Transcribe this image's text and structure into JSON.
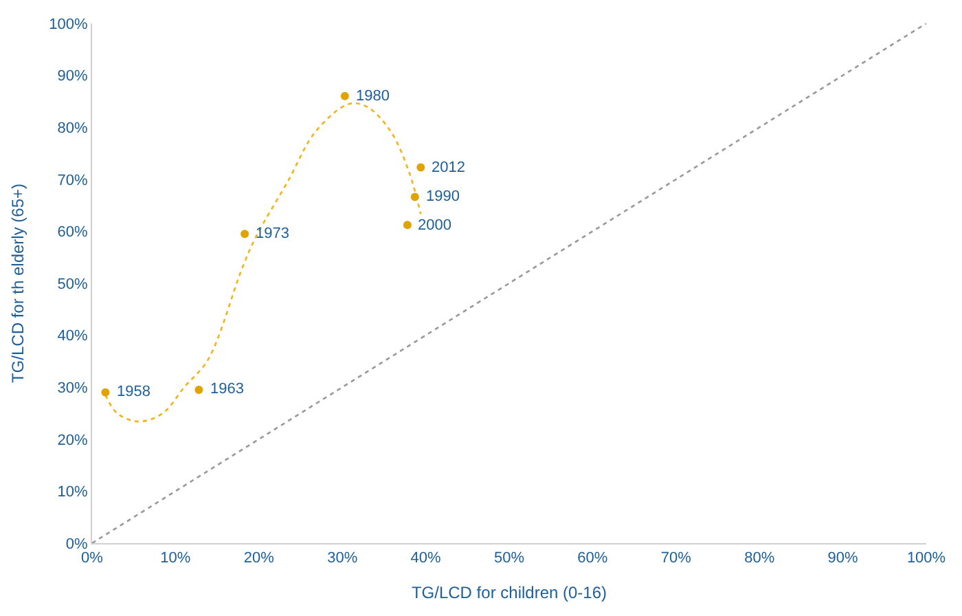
{
  "chart_data": {
    "type": "scatter",
    "xlabel": "TG/LCD for children (0-16)",
    "ylabel": "TG/LCD for th elderly (65+)",
    "xlim": [
      0,
      100
    ],
    "ylim": [
      0,
      100
    ],
    "xticks": [
      {
        "value": 0,
        "label": "0%"
      },
      {
        "value": 10,
        "label": "10%"
      },
      {
        "value": 20,
        "label": "20%"
      },
      {
        "value": 30,
        "label": "30%"
      },
      {
        "value": 40,
        "label": "40%"
      },
      {
        "value": 50,
        "label": "50%"
      },
      {
        "value": 60,
        "label": "60%"
      },
      {
        "value": 70,
        "label": "70%"
      },
      {
        "value": 80,
        "label": "80%"
      },
      {
        "value": 90,
        "label": "90%"
      },
      {
        "value": 100,
        "label": "100%"
      }
    ],
    "yticks": [
      {
        "value": 0,
        "label": "0%"
      },
      {
        "value": 10,
        "label": "10%"
      },
      {
        "value": 20,
        "label": "20%"
      },
      {
        "value": 30,
        "label": "30%"
      },
      {
        "value": 40,
        "label": "40%"
      },
      {
        "value": 50,
        "label": "50%"
      },
      {
        "value": 60,
        "label": "60%"
      },
      {
        "value": 70,
        "label": "70%"
      },
      {
        "value": 80,
        "label": "80%"
      },
      {
        "value": 90,
        "label": "90%"
      },
      {
        "value": 100,
        "label": "100%"
      }
    ],
    "series": [
      {
        "type": "line",
        "color": "#999999",
        "line_style": "dotted",
        "marker": "none",
        "x": [
          0,
          100
        ],
        "values": [
          0,
          100
        ]
      },
      {
        "type": "line",
        "color": "#f2b418",
        "line_style": "dotted",
        "marker": "none",
        "x": [
          1.6,
          3,
          5.5,
          8.4,
          11.1,
          13.9,
          17.9,
          19.5,
          23.5,
          26.8,
          30.8,
          33,
          35.8,
          38,
          39.4
        ],
        "values": [
          28.5,
          25,
          23.4,
          24.9,
          30.1,
          35.3,
          52.5,
          58.5,
          69.7,
          79.2,
          84.5,
          83.9,
          79.2,
          71.4,
          63.3
        ]
      },
      {
        "color": "#e0a300",
        "marker": "circle",
        "x": [
          1.6,
          12.8,
          18.3,
          30.3,
          38.7,
          37.8,
          39.4
        ],
        "values": [
          29,
          29.5,
          59.5,
          86,
          66.6,
          61.2,
          72.3
        ]
      }
    ],
    "annotations": [
      {
        "text": "1958",
        "x": 1.6,
        "y": 29
      },
      {
        "text": "1963",
        "x": 12.8,
        "y": 29.5
      },
      {
        "text": "1973",
        "x": 18.3,
        "y": 59.5
      },
      {
        "text": "1980",
        "x": 30.3,
        "y": 86
      },
      {
        "text": "1990",
        "x": 38.7,
        "y": 66.6
      },
      {
        "text": "2000",
        "x": 37.8,
        "y": 61.2
      },
      {
        "text": "2012",
        "x": 39.4,
        "y": 72.3
      }
    ]
  }
}
